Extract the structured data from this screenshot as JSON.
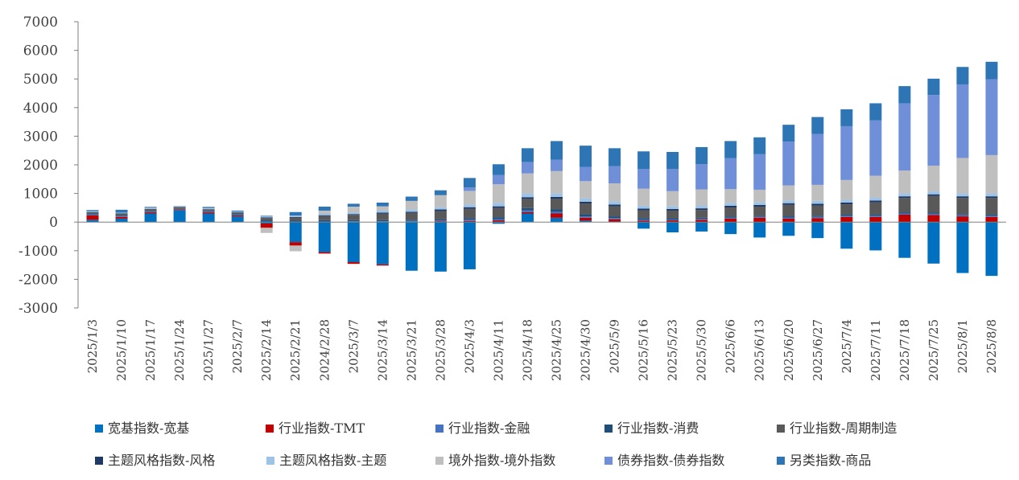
{
  "chart_data": {
    "type": "bar",
    "stacked": true,
    "title": "",
    "xlabel": "",
    "ylabel": "",
    "ylim": [
      -3000,
      7000
    ],
    "yticks": [
      -3000,
      -2000,
      -1000,
      0,
      1000,
      2000,
      3000,
      4000,
      5000,
      6000,
      7000
    ],
    "grid": false,
    "legend_position": "bottom",
    "categories": [
      "2025/1/3",
      "2025/1/10",
      "2025/1/17",
      "2025/1/24",
      "2025/1/27",
      "2025/2/7",
      "2025/2/14",
      "2025/2/21",
      "2024/2/28",
      "2025/3/7",
      "2025/3/14",
      "2025/3/21",
      "2025/3/28",
      "2025/4/3",
      "2025/4/11",
      "2025/4/18",
      "2025/4/25",
      "2025/4/30",
      "2025/5/9",
      "2025/5/16",
      "2025/5/23",
      "2025/5/30",
      "2025/6/6",
      "2025/6/13",
      "2025/6/20",
      "2025/6/27",
      "2025/7/4",
      "2025/7/11",
      "2025/7/18",
      "2025/7/25",
      "2025/8/1",
      "2025/8/8"
    ],
    "series": [
      {
        "name": "宽基指数-宽基",
        "color": "#0070C0",
        "values": [
          80,
          120,
          300,
          400,
          300,
          200,
          -50,
          -700,
          -1050,
          -1400,
          -1480,
          -1700,
          -1730,
          -1650,
          -60,
          300,
          150,
          50,
          20,
          -230,
          -360,
          -330,
          -420,
          -540,
          -480,
          -560,
          -930,
          -990,
          -1250,
          -1450,
          -1780,
          -1880
        ]
      },
      {
        "name": "行业指数-TMT",
        "color": "#C00000",
        "values": [
          150,
          60,
          40,
          20,
          40,
          30,
          -150,
          -120,
          -50,
          -60,
          -40,
          10,
          30,
          40,
          60,
          50,
          150,
          100,
          80,
          50,
          60,
          80,
          120,
          150,
          120,
          140,
          180,
          180,
          260,
          250,
          200,
          180
        ]
      },
      {
        "name": "行业指数-金融",
        "color": "#4472C4",
        "values": [
          30,
          30,
          20,
          20,
          20,
          20,
          20,
          20,
          20,
          30,
          30,
          30,
          30,
          40,
          40,
          60,
          60,
          50,
          40,
          40,
          30,
          30,
          30,
          30,
          40,
          40,
          40,
          40,
          40,
          40,
          40,
          40
        ]
      },
      {
        "name": "行业指数-消费",
        "color": "#1F4E79",
        "values": [
          20,
          20,
          20,
          20,
          20,
          20,
          40,
          40,
          50,
          40,
          40,
          40,
          40,
          60,
          70,
          80,
          80,
          70,
          60,
          50,
          40,
          40,
          40,
          40,
          40,
          40,
          40,
          40,
          40,
          40,
          40,
          40
        ]
      },
      {
        "name": "行业指数-周期制造",
        "color": "#595959",
        "values": [
          60,
          60,
          70,
          60,
          60,
          60,
          80,
          100,
          140,
          180,
          220,
          240,
          280,
          320,
          320,
          320,
          380,
          380,
          350,
          270,
          270,
          270,
          320,
          320,
          400,
          360,
          360,
          430,
          500,
          580,
          560,
          580
        ]
      },
      {
        "name": "主题风格指数-风格",
        "color": "#1F3864",
        "values": [
          10,
          10,
          10,
          10,
          10,
          10,
          20,
          20,
          30,
          30,
          40,
          40,
          60,
          60,
          60,
          60,
          60,
          60,
          60,
          60,
          60,
          60,
          60,
          60,
          60,
          60,
          60,
          60,
          60,
          60,
          60,
          60
        ]
      },
      {
        "name": "主题风格指数-主题",
        "color": "#9DC3E6",
        "values": [
          30,
          30,
          30,
          30,
          30,
          30,
          40,
          50,
          60,
          60,
          70,
          80,
          80,
          100,
          120,
          130,
          120,
          120,
          110,
          100,
          100,
          100,
          100,
          100,
          100,
          100,
          100,
          100,
          100,
          100,
          100,
          100
        ]
      },
      {
        "name": "境外指数-境外指数",
        "color": "#BFBFBF",
        "values": [
          0,
          0,
          10,
          10,
          10,
          0,
          -180,
          -200,
          100,
          200,
          150,
          300,
          420,
          470,
          650,
          700,
          780,
          600,
          630,
          600,
          520,
          560,
          480,
          430,
          520,
          560,
          690,
          770,
          800,
          900,
          1240,
          1340
        ]
      },
      {
        "name": "债券指数-债券指数",
        "color": "#6F8FD8",
        "values": [
          0,
          0,
          0,
          0,
          0,
          0,
          0,
          0,
          0,
          0,
          0,
          0,
          0,
          120,
          320,
          400,
          400,
          500,
          600,
          680,
          770,
          880,
          1080,
          1240,
          1530,
          1780,
          1880,
          1930,
          2350,
          2470,
          2570,
          2650
        ]
      },
      {
        "name": "另类指数-商品",
        "color": "#2E75B6",
        "values": [
          40,
          100,
          30,
          0,
          40,
          30,
          20,
          120,
          140,
          100,
          130,
          150,
          170,
          330,
          380,
          480,
          650,
          740,
          630,
          620,
          600,
          600,
          600,
          590,
          590,
          590,
          590,
          600,
          600,
          570,
          610,
          610
        ]
      }
    ]
  }
}
